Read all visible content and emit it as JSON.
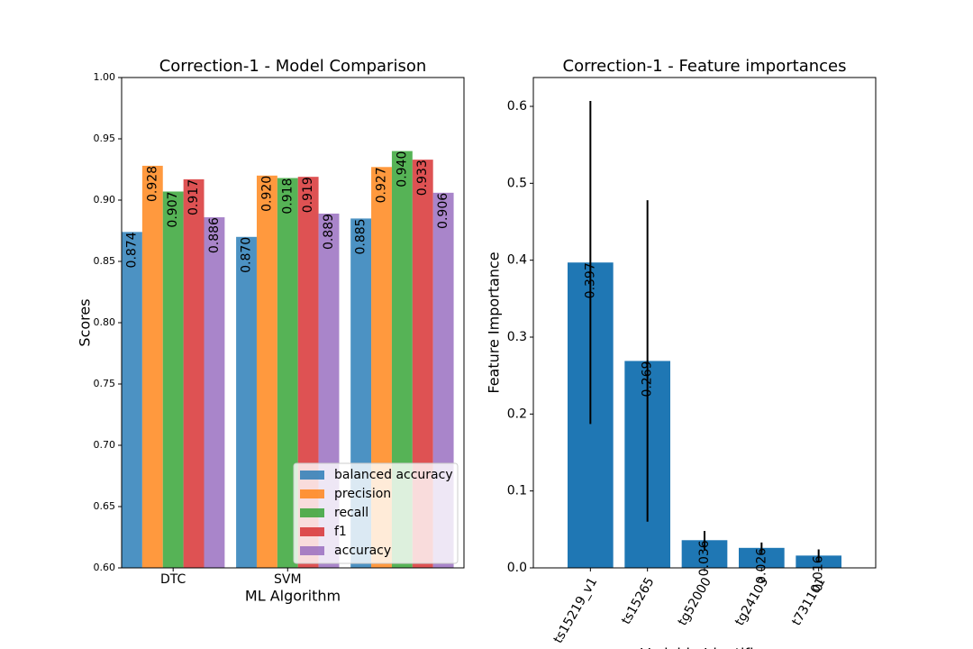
{
  "chart_data": [
    {
      "type": "bar",
      "title": "Correction-1 - Model Comparison",
      "xlabel": "ML Algorithm",
      "ylabel": "Scores",
      "categories": [
        "DTC",
        "SVM",
        null
      ],
      "series": [
        {
          "name": "balanced accuracy",
          "color": "#1f77b4",
          "values": [
            0.874,
            0.87,
            0.885
          ],
          "value_labels": [
            "0.874",
            "0.870",
            "0.885"
          ]
        },
        {
          "name": "precision",
          "color": "#ff7f0e",
          "values": [
            0.928,
            0.92,
            0.927
          ],
          "value_labels": [
            "0.928",
            "0.920",
            "0.927"
          ]
        },
        {
          "name": "recall",
          "color": "#2ca02c",
          "values": [
            0.907,
            0.918,
            0.94
          ],
          "value_labels": [
            "0.907",
            "0.918",
            "0.940"
          ]
        },
        {
          "name": "f1",
          "color": "#d62728",
          "values": [
            0.917,
            0.919,
            0.933
          ],
          "value_labels": [
            "0.917",
            "0.919",
            "0.933"
          ]
        },
        {
          "name": "accuracy",
          "color": "#9467bd",
          "values": [
            0.886,
            0.889,
            0.906
          ],
          "value_labels": [
            "0.886",
            "0.889",
            "0.906"
          ]
        }
      ],
      "ylim": [
        0.6,
        1.0
      ],
      "yticks": [
        {
          "value": 0.6,
          "label": "0.60"
        },
        0.65,
        {
          "value": 0.7,
          "label": "0.70"
        },
        0.75,
        {
          "value": 0.8,
          "label": "0.80"
        },
        0.85,
        {
          "value": 0.9,
          "label": "0.90"
        },
        0.95,
        {
          "value": 1.0,
          "label": "1.00"
        }
      ],
      "legend": "lower right"
    },
    {
      "type": "bar",
      "title": "Correction-1 - Feature importances",
      "xlabel": "Variable Identifier",
      "ylabel": "Feature Importance",
      "categories": [
        "ts15219_v1",
        "ts15265",
        "tg52000",
        "tg24103",
        "t731101"
      ],
      "values": [
        0.397,
        0.269,
        0.036,
        0.026,
        0.016
      ],
      "errors": [
        0.21,
        0.209,
        0.012,
        0.007,
        0.008
      ],
      "color": "#1f77b4",
      "ylim": [
        0,
        0.6375
      ],
      "yticks": [
        {
          "value": 0,
          "label": "0.0"
        },
        0.1,
        0.2,
        0.3,
        0.4,
        0.5,
        0.6
      ]
    }
  ]
}
